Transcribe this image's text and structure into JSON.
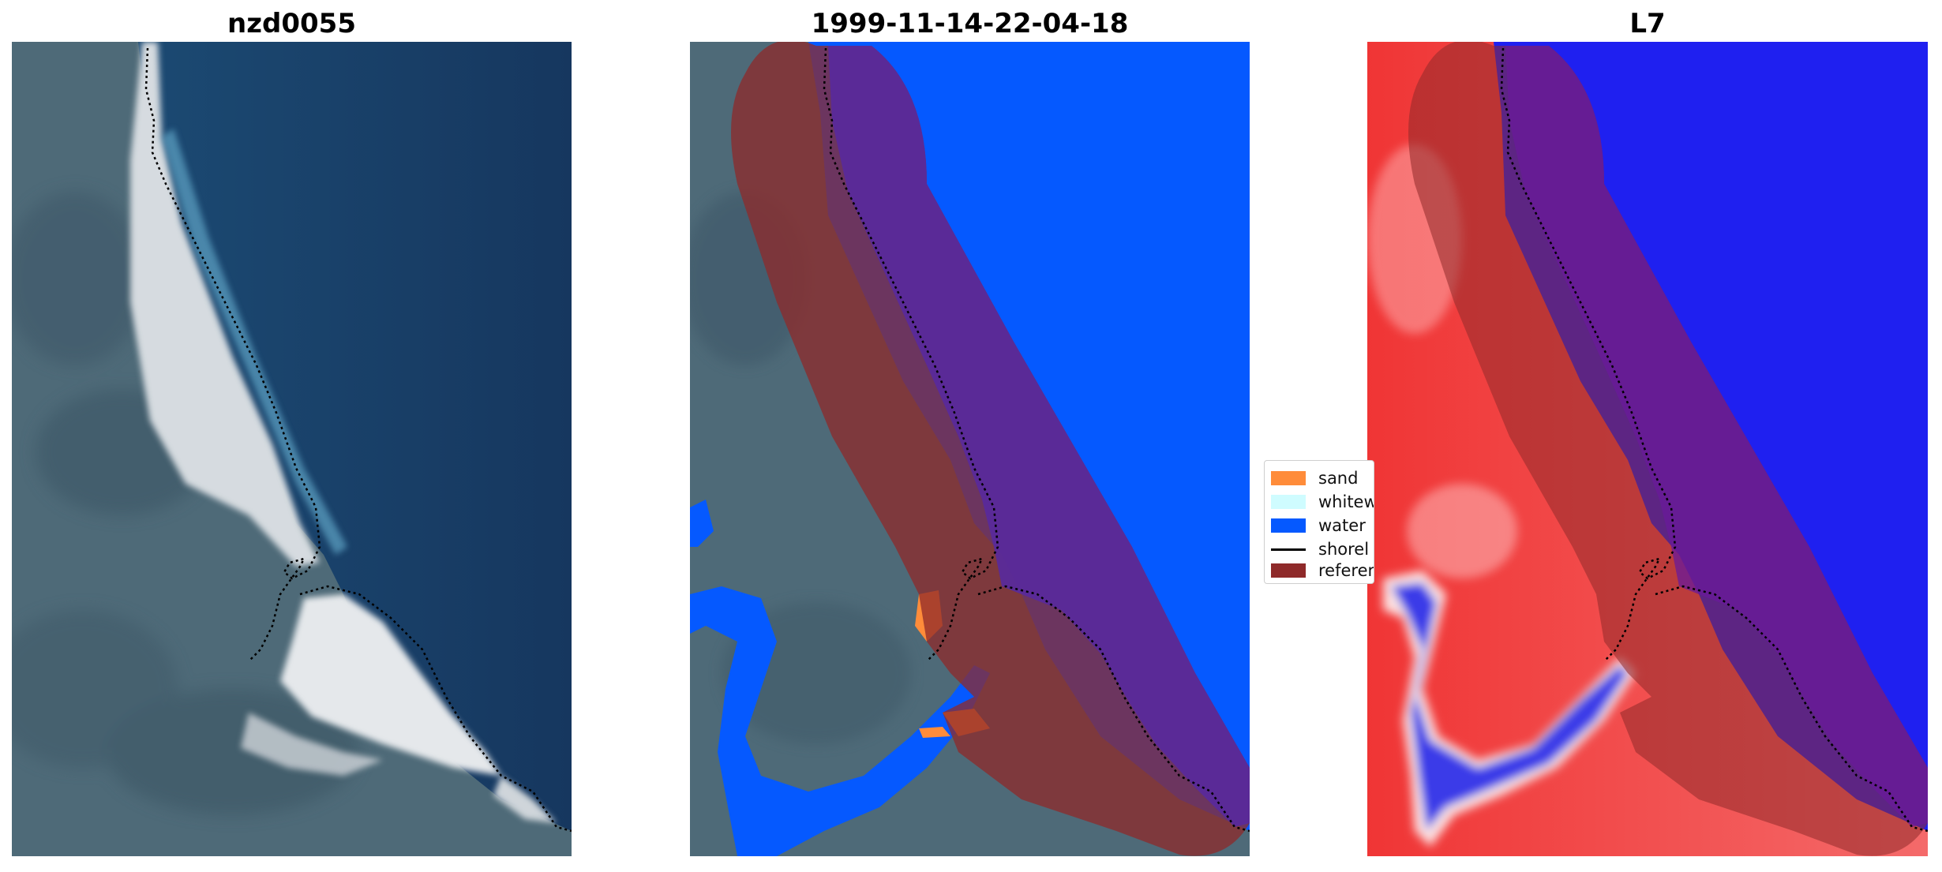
{
  "panels": {
    "left": {
      "title": "nzd0055"
    },
    "middle": {
      "title": "1999-11-14-22-04-18"
    },
    "right": {
      "title": "L7"
    }
  },
  "legend": {
    "items": [
      {
        "label": "sand",
        "color": "#ff8c3a"
      },
      {
        "label": "whitew",
        "color": "#cffcff"
      },
      {
        "label": "water",
        "color": "#0559ff"
      },
      {
        "label": "shorel",
        "color": "#000000"
      },
      {
        "label": "referer",
        "color": "#8f2a2a"
      }
    ]
  },
  "colors": {
    "ocean": "#16375f",
    "land": "#4e6a78",
    "beach": "#e2e6ea",
    "water_class": "#0559ff",
    "reference_overlay": "#8f2a2a",
    "index_red": "#f04545",
    "index_blue": "#1f20f0"
  }
}
